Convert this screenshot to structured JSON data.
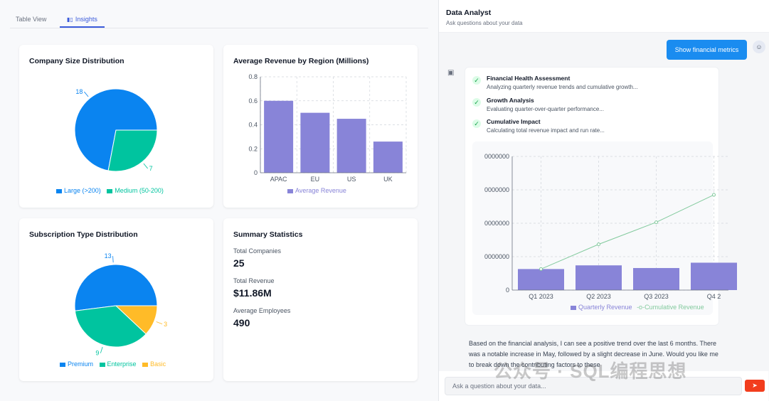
{
  "tabs": {
    "table_view": "Table View",
    "insights": "Insights"
  },
  "colors": {
    "blue": "#0a84f0",
    "teal": "#00c49f",
    "amber": "#ffbb28",
    "purple": "#8884d8",
    "green": "#82ca9d",
    "send": "#f23d1d"
  },
  "cards": {
    "company_size": {
      "title": "Company Size Distribution",
      "slices": [
        {
          "label": "Large (>200)",
          "value": 18
        },
        {
          "label": "Medium (50-200)",
          "value": 7
        }
      ]
    },
    "avg_revenue": {
      "title": "Average Revenue by Region (Millions)",
      "legend": "Average Revenue"
    },
    "subscription": {
      "title": "Subscription Type Distribution",
      "slices": [
        {
          "label": "Premium",
          "value": 13
        },
        {
          "label": "Enterprise",
          "value": 9
        },
        {
          "label": "Basic",
          "value": 3
        }
      ]
    },
    "summary": {
      "title": "Summary Statistics",
      "items": [
        {
          "label": "Total Companies",
          "value": "25"
        },
        {
          "label": "Total Revenue",
          "value": "$11.86M"
        },
        {
          "label": "Average Employees",
          "value": "490"
        }
      ]
    }
  },
  "chart_data": [
    {
      "type": "pie",
      "title": "Company Size Distribution",
      "categories": [
        "Large (>200)",
        "Medium (50-200)"
      ],
      "values": [
        18,
        7
      ]
    },
    {
      "type": "bar",
      "title": "Average Revenue by Region (Millions)",
      "categories": [
        "APAC",
        "EU",
        "US",
        "UK"
      ],
      "values": [
        0.6,
        0.5,
        0.45,
        0.26
      ],
      "ylim": [
        0,
        0.8
      ],
      "yticks": [
        "0",
        "0.2",
        "0.4",
        "0.6",
        "0.8"
      ],
      "legend": [
        "Average Revenue"
      ]
    },
    {
      "type": "pie",
      "title": "Subscription Type Distribution",
      "categories": [
        "Premium",
        "Enterprise",
        "Basic"
      ],
      "values": [
        13,
        9,
        3
      ]
    },
    {
      "type": "bar",
      "title": "",
      "categories": [
        "Q1 2023",
        "Q2 2023",
        "Q3 2023",
        "Q4 2"
      ],
      "series": [
        {
          "name": "Quarterly Revenue",
          "values": [
            0.63,
            0.74,
            0.66,
            0.82
          ]
        },
        {
          "name": "Cumulative Revenue",
          "values": [
            0.63,
            1.37,
            2.03,
            2.85
          ]
        }
      ],
      "ylim": [
        0,
        4
      ],
      "yticks": [
        "0",
        "0000000",
        "0000000",
        "0000000",
        "0000000"
      ]
    }
  ],
  "assistant": {
    "title": "Data Analyst",
    "subtitle": "Ask questions about your data",
    "user_message": "Show financial metrics",
    "avatar_icon": "user-icon",
    "bot_icon": "robot-icon",
    "steps": [
      {
        "title": "Financial Health Assessment",
        "desc": "Analyzing quarterly revenue trends and cumulative growth..."
      },
      {
        "title": "Growth Analysis",
        "desc": "Evaluating quarter-over-quarter performance..."
      },
      {
        "title": "Cumulative Impact",
        "desc": "Calculating total revenue impact and run rate..."
      }
    ],
    "chart_legend": {
      "bars": "Quarterly Revenue",
      "line": "Cumulative Revenue"
    },
    "analysis": "Based on the financial analysis, I can see a positive trend over the last 6 months. There was a notable increase in May, followed by a slight decrease in June. Would you like me to break down the contributing factors to these",
    "input_placeholder": "Ask a question about your data...",
    "send_icon": "send-icon"
  },
  "watermark": "公众号 · SQL编程思想"
}
